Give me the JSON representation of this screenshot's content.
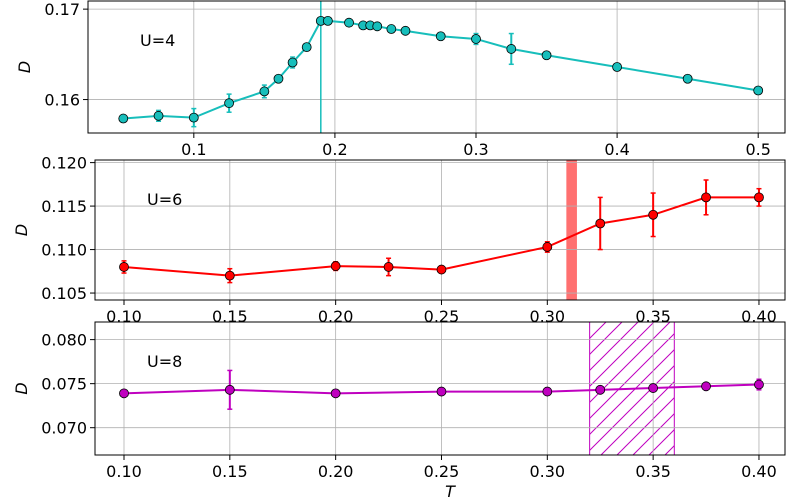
{
  "chart_data": [
    {
      "type": "line",
      "annotation": "U=4",
      "ylabel": "D",
      "color": "#17bebb",
      "grid": true,
      "x": [
        0.05,
        0.075,
        0.1,
        0.125,
        0.15,
        0.16,
        0.17,
        0.18,
        0.19,
        0.195,
        0.21,
        0.22,
        0.225,
        0.23,
        0.24,
        0.25,
        0.275,
        0.3,
        0.325,
        0.35,
        0.4,
        0.45,
        0.5
      ],
      "values": [
        0.1579,
        0.1582,
        0.158,
        0.1596,
        0.1609,
        0.1623,
        0.1641,
        0.1658,
        0.1687,
        0.1687,
        0.1685,
        0.1682,
        0.1682,
        0.1681,
        0.1678,
        0.1676,
        0.167,
        0.1667,
        0.1656,
        0.1649,
        0.1636,
        0.1623,
        0.161
      ],
      "errors": [
        0.0002,
        0.0006,
        0.001,
        0.001,
        0.0007,
        0.0003,
        0.0006,
        0.0002,
        0.0002,
        0.0002,
        0.0002,
        0.0002,
        0.0002,
        0.0002,
        0.0002,
        0.0002,
        0.0002,
        0.0006,
        0.0017,
        0.0002,
        0.0002,
        0.0002,
        0.0002
      ],
      "vline": 0.19,
      "xlim": [
        0.025,
        0.519
      ],
      "ylim": [
        0.1563,
        0.1709
      ],
      "xticks": [
        0.1,
        0.2,
        0.3,
        0.4,
        0.5
      ],
      "yticks": [
        0.16,
        0.17
      ]
    },
    {
      "type": "line",
      "annotation": "U=6",
      "ylabel": "D",
      "color": "#ff0000",
      "grid": true,
      "x": [
        0.1,
        0.15,
        0.2,
        0.225,
        0.25,
        0.3,
        0.325,
        0.35,
        0.375,
        0.4
      ],
      "values": [
        0.108,
        0.107,
        0.1081,
        0.108,
        0.1077,
        0.1103,
        0.113,
        0.114,
        0.116,
        0.116
      ],
      "errors": [
        0.0007,
        0.0008,
        0.0005,
        0.001,
        0.0003,
        0.0006,
        0.003,
        0.0025,
        0.002,
        0.001
      ],
      "span": [
        0.309,
        0.314
      ],
      "span_color": "#ff7070",
      "span_hatch": false,
      "xlim": [
        0.0863,
        0.4123
      ],
      "ylim": [
        0.1042,
        0.1203
      ],
      "xticks": [
        {
          "value": 0.1,
          "label": "0.10"
        },
        0.15,
        {
          "value": 0.2,
          "label": "0.20"
        },
        0.25,
        {
          "value": 0.3,
          "label": "0.30"
        },
        0.35,
        {
          "value": 0.4,
          "label": "0.40"
        }
      ],
      "yticks": [
        0.105,
        {
          "value": 0.11,
          "label": "0.110"
        },
        0.115,
        {
          "value": 0.12,
          "label": "0.120"
        }
      ]
    },
    {
      "type": "line",
      "annotation": "U=8",
      "ylabel": "D",
      "xlabel": "T",
      "color": "#bf00bf",
      "grid": true,
      "x": [
        0.1,
        0.15,
        0.2,
        0.25,
        0.3,
        0.325,
        0.35,
        0.375,
        0.4
      ],
      "values": [
        0.0739,
        0.0743,
        0.0739,
        0.0741,
        0.0741,
        0.0743,
        0.0745,
        0.0747,
        0.0749
      ],
      "errors": [
        0.0003,
        0.0022,
        0.0003,
        0.0003,
        0.0003,
        0.0003,
        0.0003,
        0.0003,
        0.0006
      ],
      "span": [
        0.32,
        0.36
      ],
      "span_color": "#bf00bf",
      "span_hatch": true,
      "xlim": [
        0.0863,
        0.4123
      ],
      "ylim": [
        0.0669,
        0.082
      ],
      "xticks": [
        {
          "value": 0.1,
          "label": "0.10"
        },
        0.15,
        {
          "value": 0.2,
          "label": "0.20"
        },
        0.25,
        {
          "value": 0.3,
          "label": "0.30"
        },
        0.35,
        {
          "value": 0.4,
          "label": "0.40"
        }
      ],
      "yticks": [
        {
          "value": 0.07,
          "label": "0.070"
        },
        0.075,
        {
          "value": 0.08,
          "label": "0.080"
        }
      ]
    }
  ]
}
